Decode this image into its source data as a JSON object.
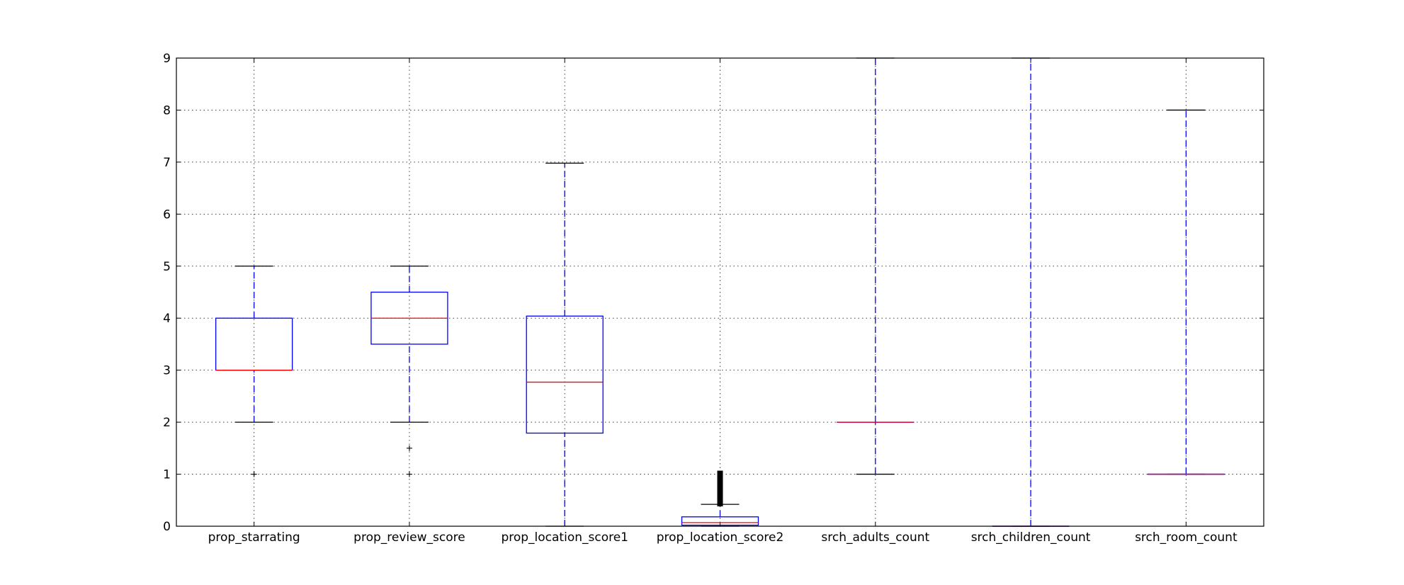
{
  "chart_data": {
    "type": "box",
    "title": "",
    "xlabel": "",
    "ylabel": "",
    "ylim": [
      0,
      9
    ],
    "yticks": [
      0,
      1,
      2,
      3,
      4,
      5,
      6,
      7,
      8,
      9
    ],
    "grid": true,
    "legend": false,
    "colors": {
      "box": "#0000ff",
      "median": "#ff0000",
      "whisker": "#0000ff",
      "cap": "#000000",
      "flier": "#000000"
    },
    "categories": [
      "prop_starrating",
      "prop_review_score",
      "prop_location_score1",
      "prop_location_score2",
      "srch_adults_count",
      "srch_children_count",
      "srch_room_count"
    ],
    "boxes": [
      {
        "name": "prop_starrating",
        "whisker_low": 2,
        "q1": 3,
        "median": 3,
        "q3": 4,
        "whisker_high": 5,
        "fliers": [
          1
        ]
      },
      {
        "name": "prop_review_score",
        "whisker_low": 2,
        "q1": 3.5,
        "median": 4,
        "q3": 4.5,
        "whisker_high": 5,
        "fliers": [
          1,
          1.5
        ]
      },
      {
        "name": "prop_location_score1",
        "whisker_low": 0,
        "q1": 1.79,
        "median": 2.77,
        "q3": 4.04,
        "whisker_high": 6.98,
        "fliers": []
      },
      {
        "name": "prop_location_score2",
        "whisker_low": 0,
        "q1": 0.02,
        "median": 0.07,
        "q3": 0.18,
        "whisker_high": 0.42,
        "fliers": [
          0.45,
          0.5,
          0.55,
          0.6,
          0.65,
          0.7,
          0.75,
          0.8,
          0.85,
          0.9,
          0.95,
          1.0
        ]
      },
      {
        "name": "srch_adults_count",
        "whisker_low": 1,
        "q1": 2,
        "median": 2,
        "q3": 2,
        "whisker_high": 9,
        "fliers": []
      },
      {
        "name": "srch_children_count",
        "whisker_low": 0,
        "q1": 0,
        "median": 0,
        "q3": 0,
        "whisker_high": 9,
        "fliers": []
      },
      {
        "name": "srch_room_count",
        "whisker_low": 1,
        "q1": 1,
        "median": 1,
        "q3": 1,
        "whisker_high": 8,
        "fliers": []
      }
    ]
  }
}
